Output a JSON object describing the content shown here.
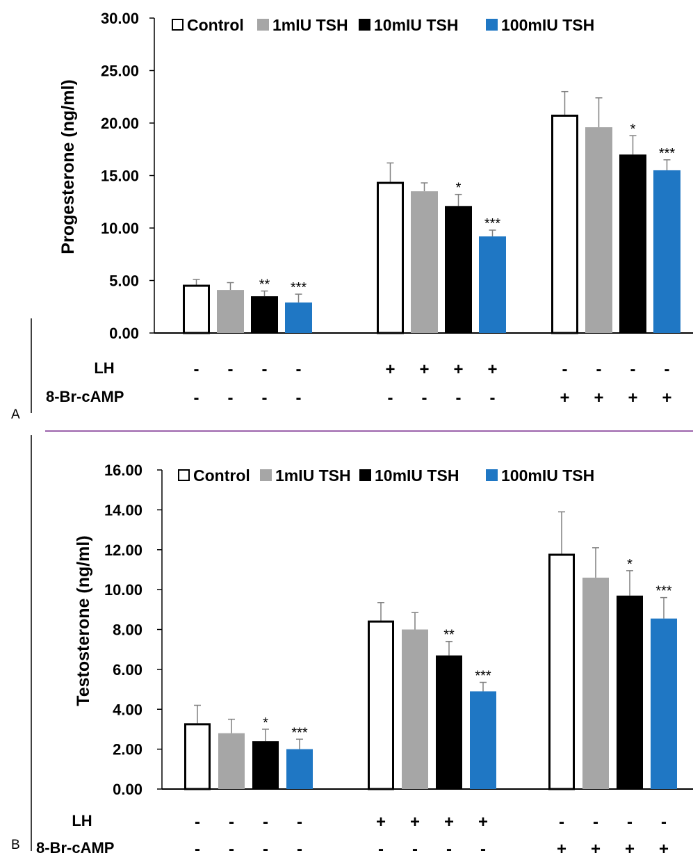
{
  "chart_data": [
    {
      "panel_label": "A",
      "type": "bar",
      "ylabel": "Progesterone (ng/ml)",
      "ylim": [
        0,
        30
      ],
      "y_ticks": [
        "0.00",
        "5.00",
        "10.00",
        "15.00",
        "20.00",
        "25.00",
        "30.00"
      ],
      "legend": [
        "Control",
        "1mIU TSH",
        "10mIU TSH",
        "100mIU TSH"
      ],
      "colors": [
        "#ffffff",
        "#a6a6a6",
        "#000000",
        "#1f77c4"
      ],
      "row_labels": [
        "LH",
        "8-Br-cAMP"
      ],
      "groups": [
        {
          "values": [
            4.6,
            4.1,
            3.5,
            2.9
          ],
          "errors": [
            0.5,
            0.7,
            0.5,
            0.8
          ],
          "sig": [
            "",
            "",
            "**",
            "***"
          ],
          "lh": [
            "-",
            "-",
            "-",
            "-"
          ],
          "camp": [
            "-",
            "-",
            "-",
            "-"
          ]
        },
        {
          "values": [
            14.4,
            13.5,
            12.1,
            9.2
          ],
          "errors": [
            1.8,
            0.8,
            1.1,
            0.6
          ],
          "sig": [
            "",
            "",
            "*",
            "***"
          ],
          "lh": [
            "+",
            "+",
            "+",
            "+"
          ],
          "camp": [
            "-",
            "-",
            "-",
            "-"
          ]
        },
        {
          "values": [
            20.8,
            19.6,
            17.0,
            15.5
          ],
          "errors": [
            2.2,
            2.8,
            1.8,
            1.0
          ],
          "sig": [
            "",
            "",
            "*",
            "***"
          ],
          "lh": [
            "-",
            "-",
            "-",
            "-"
          ],
          "camp": [
            "+",
            "+",
            "+",
            "+"
          ]
        }
      ]
    },
    {
      "panel_label": "B",
      "type": "bar",
      "ylabel": "Testosterone (ng/ml)",
      "ylim": [
        0,
        16
      ],
      "y_ticks": [
        "0.00",
        "2.00",
        "4.00",
        "6.00",
        "8.00",
        "10.00",
        "12.00",
        "14.00",
        "16.00"
      ],
      "legend": [
        "Control",
        "1mIU TSH",
        "10mIU TSH",
        "100mIU TSH"
      ],
      "colors": [
        "#ffffff",
        "#a6a6a6",
        "#000000",
        "#1f77c4"
      ],
      "row_labels": [
        "LH",
        "8-Br-cAMP"
      ],
      "groups": [
        {
          "values": [
            3.3,
            2.8,
            2.4,
            2.0
          ],
          "errors": [
            0.9,
            0.7,
            0.6,
            0.5
          ],
          "sig": [
            "",
            "",
            "*",
            "***"
          ],
          "lh": [
            "-",
            "-",
            "-",
            "-"
          ],
          "camp": [
            "-",
            "-",
            "-",
            "-"
          ]
        },
        {
          "values": [
            8.45,
            8.0,
            6.7,
            4.9
          ],
          "errors": [
            0.9,
            0.85,
            0.7,
            0.45
          ],
          "sig": [
            "",
            "",
            "**",
            "***"
          ],
          "lh": [
            "+",
            "+",
            "+",
            "+"
          ],
          "camp": [
            "-",
            "-",
            "-",
            "-"
          ]
        },
        {
          "values": [
            11.8,
            10.6,
            9.7,
            8.55
          ],
          "errors": [
            2.1,
            1.5,
            1.25,
            1.05
          ],
          "sig": [
            "",
            "",
            "*",
            "***"
          ],
          "lh": [
            "-",
            "-",
            "-",
            "-"
          ],
          "camp": [
            "+",
            "+",
            "+",
            "+"
          ]
        }
      ]
    }
  ]
}
